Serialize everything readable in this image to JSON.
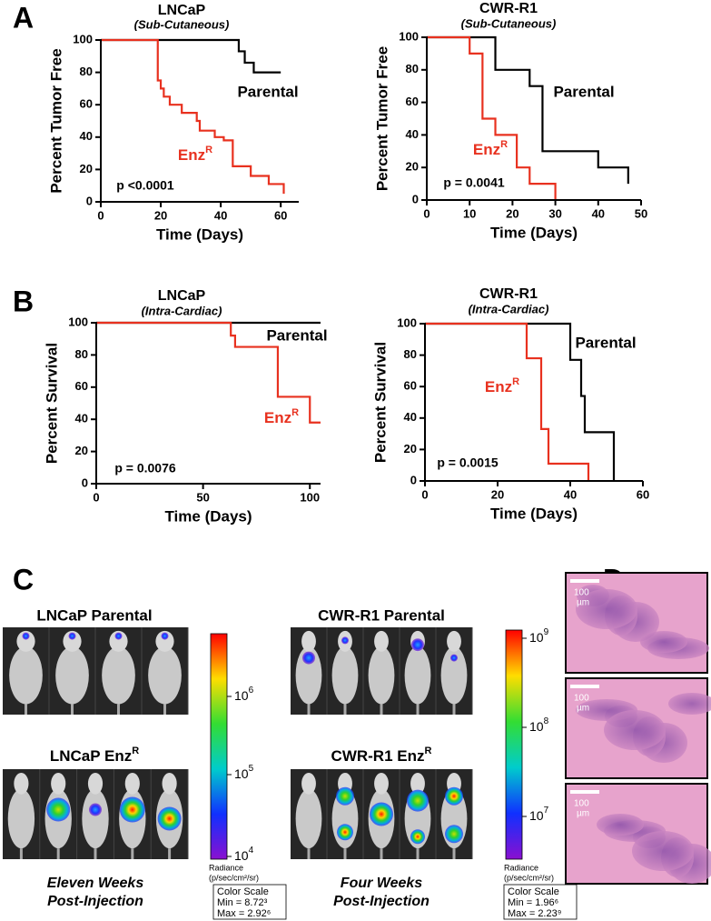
{
  "panel_labels": [
    "A",
    "B",
    "C",
    "D"
  ],
  "chart_data": [
    {
      "type": "step",
      "title": "LNCaP",
      "subtitle": "(Sub-Cutaneous)",
      "x_label": "Time (Days)",
      "y_label": "Percent Tumor Free",
      "annotation": "p <0.0001",
      "xlim": [
        0,
        66
      ],
      "xticks": [
        0,
        20,
        40,
        60
      ],
      "ylim": [
        0,
        100
      ],
      "yticks": [
        0,
        20,
        40,
        60,
        80,
        100
      ],
      "series": [
        {
          "name": "Parental",
          "color": "#000000",
          "x": [
            0,
            46,
            48,
            51,
            60
          ],
          "values": [
            100,
            93,
            86,
            80,
            80
          ]
        },
        {
          "name": "Enz",
          "name_superscript": "R",
          "color": "#e8311f",
          "x": [
            0,
            19,
            20,
            21,
            23,
            27,
            32,
            33,
            38,
            41,
            44,
            50,
            56,
            61
          ],
          "values": [
            100,
            75,
            70,
            65,
            60,
            55,
            50,
            44,
            40,
            38,
            22,
            16,
            11,
            5
          ]
        }
      ]
    },
    {
      "type": "step",
      "title": "CWR-R1",
      "subtitle": "(Sub-Cutaneous)",
      "x_label": "Time (Days)",
      "y_label": "Percent Tumor Free",
      "annotation": "p = 0.0041",
      "xlim": [
        0,
        50
      ],
      "xticks": [
        0,
        10,
        20,
        30,
        40,
        50
      ],
      "ylim": [
        0,
        100
      ],
      "yticks": [
        0,
        20,
        40,
        60,
        80,
        100
      ],
      "series": [
        {
          "name": "Parental",
          "color": "#000000",
          "x": [
            0,
            16,
            24,
            27,
            40,
            47
          ],
          "values": [
            100,
            80,
            70,
            30,
            20,
            10
          ]
        },
        {
          "name": "Enz",
          "name_superscript": "R",
          "color": "#e8311f",
          "x": [
            0,
            10,
            13,
            16,
            21,
            24,
            30
          ],
          "values": [
            100,
            90,
            50,
            40,
            20,
            10,
            0
          ]
        }
      ]
    },
    {
      "type": "step",
      "title": "LNCaP",
      "subtitle": "(Intra-Cardiac)",
      "x_label": "Time (Days)",
      "y_label": "Percent Survival",
      "annotation": "p = 0.0076",
      "xlim": [
        0,
        105
      ],
      "xticks": [
        0,
        50,
        100
      ],
      "ylim": [
        0,
        100
      ],
      "yticks": [
        0,
        20,
        40,
        60,
        80,
        100
      ],
      "series": [
        {
          "name": "Parental",
          "color": "#000000",
          "x": [
            0,
            105
          ],
          "values": [
            100,
            100
          ]
        },
        {
          "name": "Enz",
          "name_superscript": "R",
          "color": "#e8311f",
          "x": [
            0,
            63,
            65,
            85,
            100,
            105
          ],
          "values": [
            100,
            92,
            85,
            54,
            38,
            38
          ]
        }
      ]
    },
    {
      "type": "step",
      "title": "CWR-R1",
      "subtitle": "(Intra-Cardiac)",
      "x_label": "Time (Days)",
      "y_label": "Percent Survival",
      "annotation": "p = 0.0015",
      "xlim": [
        0,
        60
      ],
      "xticks": [
        0,
        20,
        40,
        60
      ],
      "ylim": [
        0,
        100
      ],
      "yticks": [
        0,
        20,
        40,
        60,
        80,
        100
      ],
      "series": [
        {
          "name": "Parental",
          "color": "#000000",
          "x": [
            0,
            40,
            43,
            44,
            52
          ],
          "values": [
            100,
            77,
            54,
            31,
            0
          ]
        },
        {
          "name": "Enz",
          "name_superscript": "R",
          "color": "#e8311f",
          "x": [
            0,
            28,
            32,
            34,
            45
          ],
          "values": [
            100,
            78,
            33,
            11,
            0
          ]
        }
      ]
    }
  ],
  "imaging": [
    {
      "groups": [
        {
          "title": "LNCaP Parental"
        },
        {
          "title": "LNCaP Enz",
          "title_superscript": "R"
        }
      ],
      "colorbar": {
        "ticks": [
          {
            "base": "10",
            "exponent": "6"
          },
          {
            "base": "10",
            "exponent": "5"
          },
          {
            "base": "10",
            "exponent": "4"
          }
        ],
        "label": "Radiance",
        "unit": "(p/sec/cm²/sr)"
      },
      "scale_box": [
        "Color Scale",
        "Min = 8.72³",
        "Max = 2.92⁶"
      ],
      "caption": [
        "Eleven Weeks",
        "Post-Injection"
      ]
    },
    {
      "groups": [
        {
          "title": "CWR-R1 Parental"
        },
        {
          "title": "CWR-R1 Enz",
          "title_superscript": "R"
        }
      ],
      "colorbar": {
        "ticks": [
          {
            "base": "10",
            "exponent": "9"
          },
          {
            "base": "10",
            "exponent": "8"
          },
          {
            "base": "10",
            "exponent": "7"
          }
        ],
        "label": "Radiance",
        "unit": "(p/sec/cm²/sr)"
      },
      "scale_box": [
        "Color Scale",
        "Min = 1.96⁶",
        "Max = 2.23⁹"
      ],
      "caption": [
        "Four Weeks",
        "Post-Injection"
      ]
    }
  ],
  "histology": [
    {
      "scale_value": "100",
      "scale_unit": "µm"
    },
    {
      "scale_value": "100",
      "scale_unit": "µm"
    },
    {
      "scale_value": "100",
      "scale_unit": "µm"
    }
  ]
}
